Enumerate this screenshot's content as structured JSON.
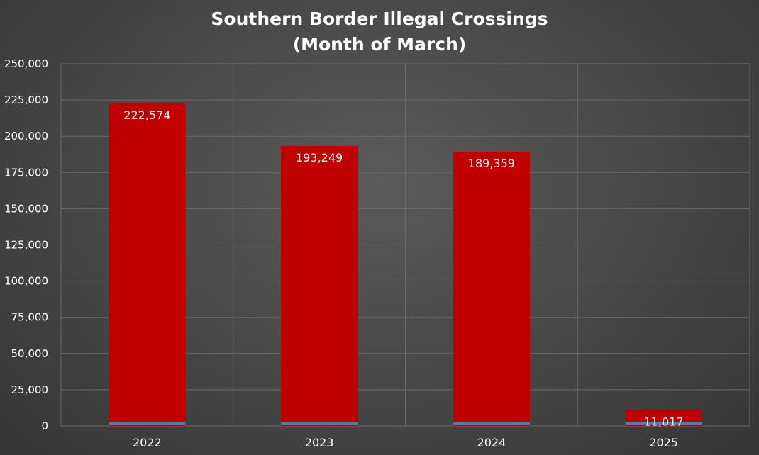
{
  "chart_data": {
    "type": "bar",
    "title_lines": [
      "Southern Border Illegal Crossings",
      "(Month of March)"
    ],
    "xlabel": "",
    "ylabel": "",
    "categories": [
      "2022",
      "2023",
      "2024",
      "2025"
    ],
    "values": [
      222574,
      193249,
      189359,
      11017
    ],
    "data_labels": [
      "222,574",
      "193,249",
      "189,359",
      "11,017"
    ],
    "ylim": [
      0,
      250000
    ],
    "y_ticks": [
      0,
      25000,
      50000,
      75000,
      100000,
      125000,
      150000,
      175000,
      200000,
      225000,
      250000
    ],
    "y_tick_labels": [
      "0",
      "25,000",
      "50,000",
      "75,000",
      "100,000",
      "125,000",
      "150,000",
      "175,000",
      "200,000",
      "225,000",
      "250,000"
    ],
    "grid": true,
    "legend": "none",
    "colors": {
      "bar": "#c00000",
      "bar_base": "#2e8bc0",
      "grid": "#6a6a6a",
      "text": "#ffffff"
    }
  }
}
